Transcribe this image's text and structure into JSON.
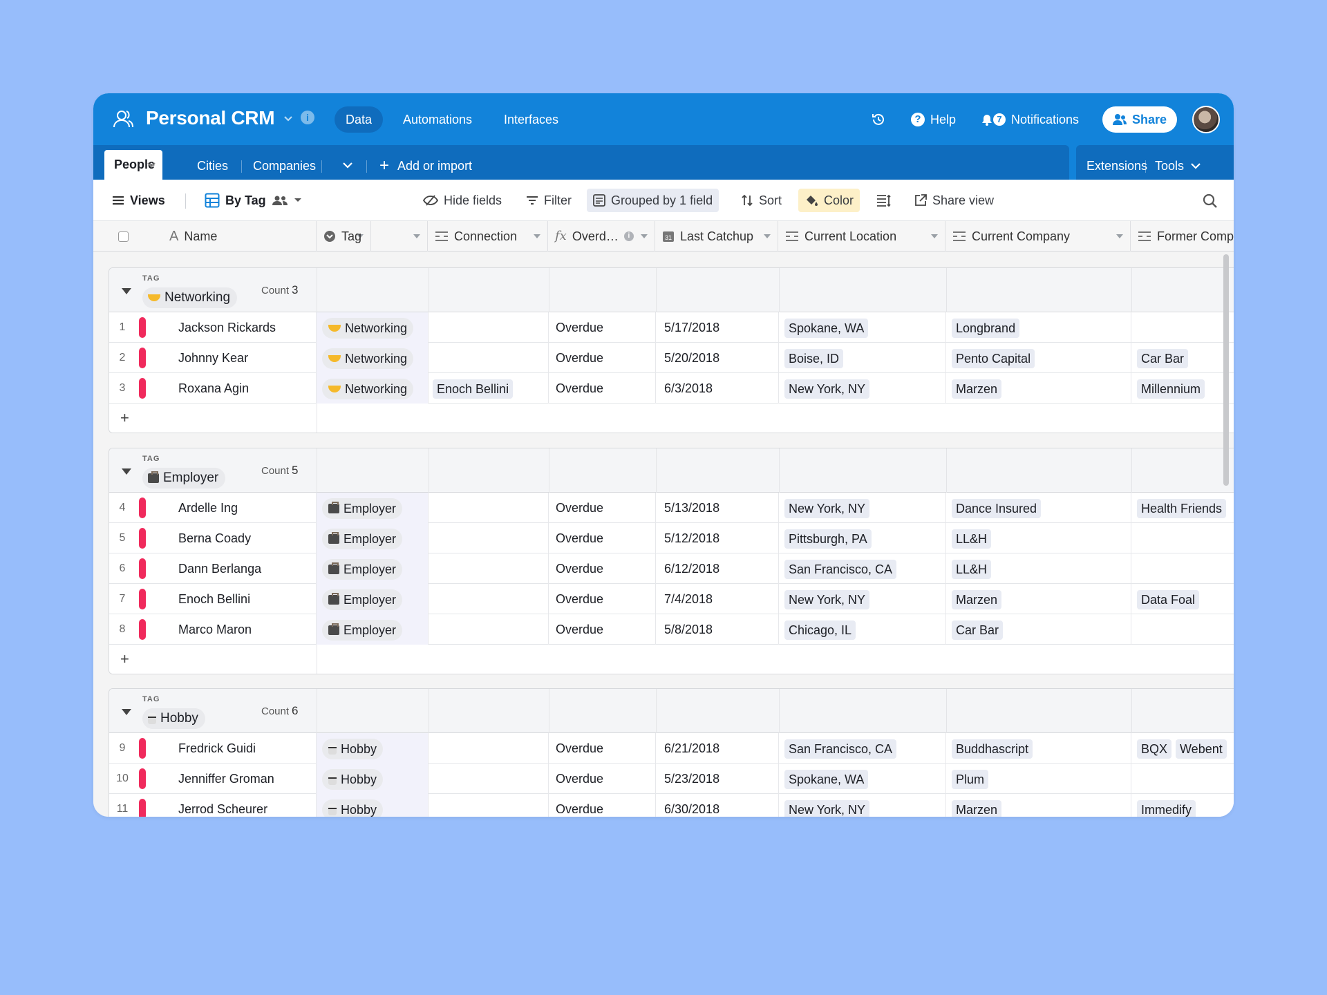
{
  "app": {
    "base_name": "Personal CRM",
    "top_tabs": [
      "Data",
      "Automations",
      "Interfaces"
    ],
    "help": "Help",
    "notifications": "Notifications",
    "notifications_badge": "7",
    "share": "Share"
  },
  "tables": {
    "items": [
      "People",
      "Cities",
      "Companies"
    ],
    "add": "Add or import",
    "extensions": "Extensions",
    "tools": "Tools"
  },
  "viewbar": {
    "views": "Views",
    "current_view": "By Tag",
    "hide_fields": "Hide fields",
    "filter": "Filter",
    "grouped": "Grouped by 1 field",
    "sort": "Sort",
    "color": "Color",
    "share_view": "Share view"
  },
  "columns": [
    "Name",
    "Tag",
    "Connection",
    "Overd…",
    "Last Catchup",
    "Current Location",
    "Current Company",
    "Former Comp"
  ],
  "group_label": "TAG",
  "count_label": "Count",
  "groups": [
    {
      "name": "Networking",
      "count": "3",
      "rows": [
        {
          "num": "1",
          "name": "Jackson Rickards",
          "tag": "Networking",
          "connection": "",
          "overdue": "Overdue",
          "catchup": "5/17/2018",
          "location": "Spokane, WA",
          "company": "Longbrand",
          "former": []
        },
        {
          "num": "2",
          "name": "Johnny Kear",
          "tag": "Networking",
          "connection": "",
          "overdue": "Overdue",
          "catchup": "5/20/2018",
          "location": "Boise, ID",
          "company": "Pento Capital",
          "former": [
            "Car Bar"
          ]
        },
        {
          "num": "3",
          "name": "Roxana Agin",
          "tag": "Networking",
          "connection": "Enoch Bellini",
          "overdue": "Overdue",
          "catchup": "6/3/2018",
          "location": "New York, NY",
          "company": "Marzen",
          "former": [
            "Millennium"
          ]
        }
      ]
    },
    {
      "name": "Employer",
      "count": "5",
      "rows": [
        {
          "num": "4",
          "name": "Ardelle Ing",
          "tag": "Employer",
          "connection": "",
          "overdue": "Overdue",
          "catchup": "5/13/2018",
          "location": "New York, NY",
          "company": "Dance Insured",
          "former": [
            "Health Friends"
          ]
        },
        {
          "num": "5",
          "name": "Berna Coady",
          "tag": "Employer",
          "connection": "",
          "overdue": "Overdue",
          "catchup": "5/12/2018",
          "location": "Pittsburgh, PA",
          "company": "LL&H",
          "former": []
        },
        {
          "num": "6",
          "name": "Dann Berlanga",
          "tag": "Employer",
          "connection": "",
          "overdue": "Overdue",
          "catchup": "6/12/2018",
          "location": "San Francisco, CA",
          "company": "LL&H",
          "former": []
        },
        {
          "num": "7",
          "name": "Enoch Bellini",
          "tag": "Employer",
          "connection": "",
          "overdue": "Overdue",
          "catchup": "7/4/2018",
          "location": "New York, NY",
          "company": "Marzen",
          "former": [
            "Data Foal"
          ]
        },
        {
          "num": "8",
          "name": "Marco Maron",
          "tag": "Employer",
          "connection": "",
          "overdue": "Overdue",
          "catchup": "5/8/2018",
          "location": "Chicago, IL",
          "company": "Car Bar",
          "former": []
        }
      ]
    },
    {
      "name": "Hobby",
      "count": "6",
      "rows": [
        {
          "num": "9",
          "name": "Fredrick Guidi",
          "tag": "Hobby",
          "connection": "",
          "overdue": "Overdue",
          "catchup": "6/21/2018",
          "location": "San Francisco, CA",
          "company": "Buddhascript",
          "former": [
            "BQX",
            "Webent"
          ]
        },
        {
          "num": "10",
          "name": "Jenniffer Groman",
          "tag": "Hobby",
          "connection": "",
          "overdue": "Overdue",
          "catchup": "5/23/2018",
          "location": "Spokane, WA",
          "company": "Plum",
          "former": []
        },
        {
          "num": "11",
          "name": "Jerrod Scheurer",
          "tag": "Hobby",
          "connection": "",
          "overdue": "Overdue",
          "catchup": "6/30/2018",
          "location": "New York, NY",
          "company": "Marzen",
          "former": [
            "Immedify"
          ]
        }
      ]
    }
  ],
  "colors": {
    "header_blue": "#1283da",
    "row_color_bar": "#f02a5c",
    "background": "#97bdfb",
    "color_button_bg": "#fdf0c8"
  }
}
